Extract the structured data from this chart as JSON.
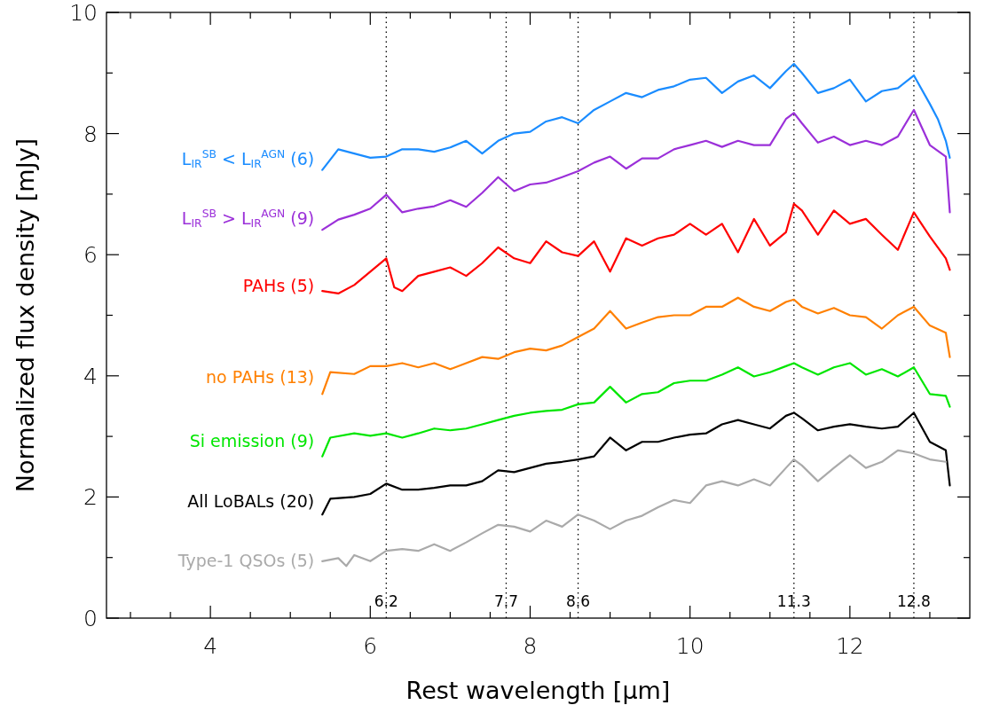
{
  "chart_data": {
    "type": "line",
    "xlabel": "Rest wavelength [μm]",
    "ylabel": "Normalized flux density [mJy]",
    "xlim": [
      2.7,
      13.5
    ],
    "ylim": [
      0,
      10
    ],
    "xticks": [
      {
        "value": 3,
        "label": null
      },
      {
        "value": 3.5,
        "label": null
      },
      4,
      {
        "value": 4.5,
        "label": null
      },
      {
        "value": 5,
        "label": null
      },
      {
        "value": 5.5,
        "label": null
      },
      6,
      {
        "value": 6.5,
        "label": null
      },
      {
        "value": 7,
        "label": null
      },
      {
        "value": 7.5,
        "label": null
      },
      8,
      {
        "value": 8.5,
        "label": null
      },
      {
        "value": 9,
        "label": null
      },
      {
        "value": 9.5,
        "label": null
      },
      10,
      {
        "value": 10.5,
        "label": null
      },
      {
        "value": 11,
        "label": null
      },
      {
        "value": 11.5,
        "label": null
      },
      12,
      {
        "value": 12.5,
        "label": null
      },
      {
        "value": 13,
        "label": null
      }
    ],
    "yticks": [
      0,
      {
        "value": 1,
        "label": null
      },
      2,
      {
        "value": 3,
        "label": null
      },
      4,
      {
        "value": 5,
        "label": null
      },
      6,
      {
        "value": 7,
        "label": null
      },
      8,
      {
        "value": 9,
        "label": null
      },
      10
    ],
    "grid": false,
    "legend": false,
    "line_style": "solid",
    "ref_lines": [
      {
        "axis": "x",
        "value": 6.2,
        "label": "6.2",
        "line_style": "dotted",
        "color": "#000000"
      },
      {
        "axis": "x",
        "value": 7.7,
        "label": "7.7",
        "line_style": "dotted",
        "color": "#000000"
      },
      {
        "axis": "x",
        "value": 8.6,
        "label": "8.6",
        "line_style": "dotted",
        "color": "#000000"
      },
      {
        "axis": "x",
        "value": 11.3,
        "label": "11.3",
        "line_style": "dotted",
        "color": "#000000"
      },
      {
        "axis": "x",
        "value": 12.8,
        "label": "12.8",
        "line_style": "dotted",
        "color": "#000000"
      }
    ],
    "series": [
      {
        "name": "L$_{IR}$$^{SB}$ < L$_{IR}$$^{AGN}$ (6)",
        "color": "#1a8cff",
        "x": [
          5.4,
          5.6,
          6.0,
          6.2,
          6.4,
          6.6,
          6.8,
          7.0,
          7.2,
          7.4,
          7.6,
          7.8,
          8.0,
          8.2,
          8.4,
          8.6,
          8.8,
          9.0,
          9.2,
          9.4,
          9.6,
          9.8,
          10.0,
          10.2,
          10.4,
          10.6,
          10.8,
          11.0,
          11.2,
          11.3,
          11.4,
          11.6,
          11.8,
          12.0,
          12.2,
          12.4,
          12.6,
          12.8,
          13.0,
          13.1,
          13.2,
          13.25
        ],
        "values": [
          7.4,
          7.74,
          7.6,
          7.62,
          7.74,
          7.74,
          7.7,
          7.77,
          7.88,
          7.67,
          7.88,
          8.0,
          8.03,
          8.2,
          8.27,
          8.17,
          8.39,
          8.53,
          8.67,
          8.6,
          8.72,
          8.78,
          8.89,
          8.92,
          8.67,
          8.86,
          8.96,
          8.75,
          9.03,
          9.15,
          9.0,
          8.67,
          8.75,
          8.89,
          8.53,
          8.7,
          8.75,
          8.96,
          8.49,
          8.24,
          7.88,
          7.6
        ]
      },
      {
        "name": "L$_{IR}$$^{SB}$ > L$_{IR}$$^{AGN}$ (9)",
        "color": "#9b30d9",
        "x": [
          5.4,
          5.6,
          5.8,
          6.0,
          6.2,
          6.4,
          6.6,
          6.8,
          7.0,
          7.2,
          7.4,
          7.6,
          7.8,
          8.0,
          8.2,
          8.4,
          8.6,
          8.8,
          9.0,
          9.2,
          9.4,
          9.6,
          9.8,
          10.0,
          10.2,
          10.4,
          10.6,
          10.8,
          11.0,
          11.2,
          11.3,
          11.4,
          11.6,
          11.8,
          12.0,
          12.2,
          12.4,
          12.6,
          12.8,
          13.0,
          13.2,
          13.25
        ],
        "values": [
          6.41,
          6.58,
          6.66,
          6.76,
          6.99,
          6.7,
          6.76,
          6.8,
          6.9,
          6.79,
          7.02,
          7.28,
          7.05,
          7.16,
          7.19,
          7.28,
          7.38,
          7.52,
          7.62,
          7.42,
          7.59,
          7.59,
          7.74,
          7.81,
          7.88,
          7.78,
          7.88,
          7.81,
          7.81,
          8.24,
          8.34,
          8.17,
          7.85,
          7.95,
          7.81,
          7.88,
          7.81,
          7.95,
          8.39,
          7.81,
          7.62,
          6.7
        ]
      },
      {
        "name": "PAHs (5)",
        "color": "#ff0000",
        "x": [
          5.4,
          5.6,
          5.8,
          6.0,
          6.2,
          6.3,
          6.4,
          6.6,
          6.8,
          7.0,
          7.2,
          7.4,
          7.6,
          7.8,
          8.0,
          8.2,
          8.4,
          8.6,
          8.8,
          9.0,
          9.2,
          9.4,
          9.6,
          9.8,
          10.0,
          10.2,
          10.4,
          10.6,
          10.8,
          11.0,
          11.2,
          11.3,
          11.4,
          11.6,
          11.8,
          12.0,
          12.2,
          12.4,
          12.6,
          12.8,
          13.0,
          13.2,
          13.25
        ],
        "values": [
          5.4,
          5.36,
          5.5,
          5.72,
          5.94,
          5.46,
          5.4,
          5.65,
          5.72,
          5.79,
          5.65,
          5.86,
          6.12,
          5.94,
          5.86,
          6.22,
          6.04,
          5.98,
          6.22,
          5.72,
          6.27,
          6.15,
          6.27,
          6.33,
          6.51,
          6.33,
          6.51,
          6.04,
          6.59,
          6.15,
          6.37,
          6.84,
          6.73,
          6.33,
          6.73,
          6.51,
          6.59,
          6.33,
          6.08,
          6.7,
          6.3,
          5.94,
          5.75
        ]
      },
      {
        "name": "no PAHs (13)",
        "color": "#ff8000",
        "x": [
          5.4,
          5.5,
          5.8,
          6.0,
          6.2,
          6.4,
          6.6,
          6.8,
          7.0,
          7.2,
          7.4,
          7.6,
          7.8,
          8.0,
          8.2,
          8.4,
          8.6,
          8.8,
          9.0,
          9.2,
          9.4,
          9.6,
          9.8,
          10.0,
          10.2,
          10.4,
          10.6,
          10.8,
          11.0,
          11.2,
          11.3,
          11.4,
          11.6,
          11.8,
          12.0,
          12.2,
          12.4,
          12.6,
          12.8,
          13.0,
          13.2,
          13.25
        ],
        "values": [
          3.7,
          4.06,
          4.03,
          4.16,
          4.16,
          4.21,
          4.14,
          4.21,
          4.11,
          4.21,
          4.31,
          4.28,
          4.39,
          4.45,
          4.42,
          4.5,
          4.64,
          4.78,
          5.07,
          4.78,
          4.88,
          4.97,
          5.0,
          5.0,
          5.14,
          5.14,
          5.29,
          5.14,
          5.07,
          5.22,
          5.26,
          5.14,
          5.03,
          5.12,
          5.0,
          4.97,
          4.78,
          5.0,
          5.14,
          4.83,
          4.71,
          4.31
        ]
      },
      {
        "name": "Si emission (9)",
        "color": "#00e600",
        "x": [
          5.4,
          5.5,
          5.8,
          6.0,
          6.2,
          6.4,
          6.6,
          6.8,
          7.0,
          7.2,
          7.4,
          7.6,
          7.8,
          8.0,
          8.2,
          8.4,
          8.6,
          8.8,
          9.0,
          9.2,
          9.4,
          9.6,
          9.8,
          10.0,
          10.2,
          10.4,
          10.6,
          10.8,
          11.0,
          11.2,
          11.3,
          11.4,
          11.6,
          11.8,
          12.0,
          12.2,
          12.4,
          12.6,
          12.8,
          13.0,
          13.2,
          13.25
        ],
        "values": [
          2.67,
          2.98,
          3.05,
          3.01,
          3.05,
          2.98,
          3.05,
          3.13,
          3.1,
          3.13,
          3.2,
          3.27,
          3.34,
          3.39,
          3.42,
          3.44,
          3.53,
          3.56,
          3.82,
          3.56,
          3.7,
          3.73,
          3.88,
          3.92,
          3.92,
          4.02,
          4.14,
          3.99,
          4.06,
          4.16,
          4.21,
          4.14,
          4.02,
          4.14,
          4.21,
          4.02,
          4.11,
          3.99,
          4.14,
          3.7,
          3.67,
          3.49
        ]
      },
      {
        "name": "All LoBALs (20)",
        "color": "#000000",
        "x": [
          5.4,
          5.5,
          5.8,
          6.0,
          6.2,
          6.4,
          6.6,
          6.8,
          7.0,
          7.2,
          7.4,
          7.6,
          7.8,
          8.0,
          8.2,
          8.4,
          8.6,
          8.8,
          9.0,
          9.2,
          9.4,
          9.6,
          9.8,
          10.0,
          10.2,
          10.4,
          10.6,
          10.8,
          11.0,
          11.2,
          11.3,
          11.4,
          11.6,
          11.8,
          12.0,
          12.2,
          12.4,
          12.6,
          12.8,
          13.0,
          13.2,
          13.25
        ],
        "values": [
          1.71,
          1.97,
          2.0,
          2.05,
          2.22,
          2.12,
          2.12,
          2.15,
          2.19,
          2.19,
          2.26,
          2.44,
          2.41,
          2.48,
          2.55,
          2.58,
          2.62,
          2.67,
          2.98,
          2.77,
          2.91,
          2.91,
          2.98,
          3.03,
          3.05,
          3.2,
          3.27,
          3.2,
          3.13,
          3.34,
          3.39,
          3.3,
          3.1,
          3.16,
          3.2,
          3.16,
          3.13,
          3.16,
          3.39,
          2.91,
          2.77,
          2.19
        ]
      },
      {
        "name": "Type-1 QSOs (5)",
        "color": "#aaaaaa",
        "x": [
          5.4,
          5.6,
          5.7,
          5.8,
          6.0,
          6.2,
          6.4,
          6.6,
          6.8,
          7.0,
          7.2,
          7.4,
          7.6,
          7.8,
          8.0,
          8.2,
          8.4,
          8.6,
          8.8,
          9.0,
          9.2,
          9.4,
          9.6,
          9.8,
          10.0,
          10.2,
          10.4,
          10.6,
          10.8,
          11.0,
          11.2,
          11.3,
          11.4,
          11.6,
          11.8,
          12.0,
          12.2,
          12.4,
          12.6,
          12.8,
          13.0,
          13.2
        ],
        "values": [
          0.94,
          0.99,
          0.86,
          1.04,
          0.94,
          1.11,
          1.14,
          1.11,
          1.22,
          1.11,
          1.25,
          1.4,
          1.54,
          1.51,
          1.43,
          1.61,
          1.51,
          1.71,
          1.61,
          1.47,
          1.61,
          1.69,
          1.83,
          1.95,
          1.9,
          2.19,
          2.26,
          2.19,
          2.29,
          2.19,
          2.48,
          2.62,
          2.52,
          2.26,
          2.48,
          2.69,
          2.48,
          2.58,
          2.77,
          2.72,
          2.62,
          2.58
        ]
      }
    ]
  }
}
